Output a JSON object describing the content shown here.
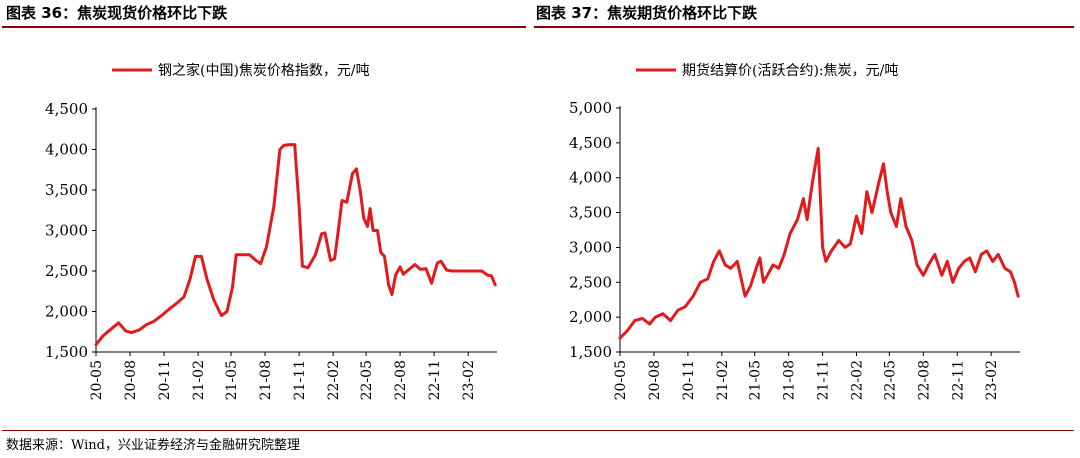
{
  "left": {
    "fig_title": "图表 36：焦炭现货价格环比下跌",
    "chart_data": {
      "type": "line",
      "title": "",
      "xlabel": "",
      "ylabel": "",
      "ylim": [
        1500,
        4500
      ],
      "yticks": [
        "1,500",
        "2,000",
        "2,500",
        "3,000",
        "3,500",
        "4,000",
        "4,500"
      ],
      "xticks": [
        "20-05",
        "20-08",
        "20-11",
        "21-02",
        "21-05",
        "21-08",
        "21-11",
        "22-02",
        "22-05",
        "22-08",
        "22-11",
        "23-02"
      ],
      "legend": "top-center",
      "grid": false,
      "series": [
        {
          "name": "钢之家(中国)焦炭价格指数，元/吨",
          "color": "#e31a1c",
          "x": [
            "2020-05-01",
            "2020-05-20",
            "2020-06-10",
            "2020-07-01",
            "2020-07-20",
            "2020-08-05",
            "2020-08-25",
            "2020-09-15",
            "2020-10-05",
            "2020-10-25",
            "2020-11-15",
            "2020-12-05",
            "2020-12-25",
            "2021-01-10",
            "2021-01-25",
            "2021-02-10",
            "2021-02-25",
            "2021-03-15",
            "2021-04-05",
            "2021-04-20",
            "2021-05-05",
            "2021-05-15",
            "2021-05-25",
            "2021-06-20",
            "2021-07-05",
            "2021-07-20",
            "2021-08-05",
            "2021-08-25",
            "2021-09-10",
            "2021-09-20",
            "2021-10-05",
            "2021-10-20",
            "2021-11-01",
            "2021-11-10",
            "2021-11-25",
            "2021-12-15",
            "2022-01-01",
            "2022-01-10",
            "2022-01-25",
            "2022-02-05",
            "2022-02-15",
            "2022-02-25",
            "2022-03-10",
            "2022-03-25",
            "2022-04-05",
            "2022-04-15",
            "2022-04-25",
            "2022-05-05",
            "2022-05-12",
            "2022-05-20",
            "2022-06-01",
            "2022-06-10",
            "2022-06-20",
            "2022-07-01",
            "2022-07-10",
            "2022-07-20",
            "2022-08-01",
            "2022-08-10",
            "2022-08-20",
            "2022-09-10",
            "2022-09-25",
            "2022-10-10",
            "2022-10-25",
            "2022-11-10",
            "2022-11-20",
            "2022-12-05",
            "2022-12-20",
            "2023-01-05",
            "2023-01-20",
            "2023-02-05",
            "2023-02-20",
            "2023-03-10",
            "2023-03-25",
            "2023-04-05",
            "2023-04-15"
          ],
          "values": [
            1590,
            1700,
            1780,
            1860,
            1760,
            1740,
            1770,
            1840,
            1880,
            1950,
            2030,
            2100,
            2180,
            2400,
            2680,
            2680,
            2400,
            2150,
            1950,
            2000,
            2300,
            2700,
            2700,
            2700,
            2640,
            2590,
            2800,
            3300,
            4000,
            4050,
            4060,
            4060,
            3300,
            2560,
            2540,
            2700,
            2960,
            2970,
            2630,
            2650,
            3000,
            3370,
            3350,
            3700,
            3760,
            3500,
            3150,
            3050,
            3270,
            3000,
            3000,
            2730,
            2680,
            2330,
            2210,
            2450,
            2550,
            2460,
            2500,
            2580,
            2520,
            2530,
            2350,
            2600,
            2620,
            2510,
            2500,
            2500,
            2500,
            2500,
            2500,
            2500,
            2450,
            2440,
            2330
          ]
        }
      ]
    }
  },
  "right": {
    "fig_title": "图表 37：焦炭期货价格环比下跌",
    "chart_data": {
      "type": "line",
      "title": "",
      "xlabel": "",
      "ylabel": "",
      "ylim": [
        1500,
        5000
      ],
      "yticks": [
        "1,500",
        "2,000",
        "2,500",
        "3,000",
        "3,500",
        "4,000",
        "4,500",
        "5,000"
      ],
      "xticks": [
        "20-05",
        "20-08",
        "20-11",
        "21-02",
        "21-05",
        "21-08",
        "21-11",
        "22-02",
        "22-05",
        "22-08",
        "22-11",
        "23-02"
      ],
      "legend": "top-center",
      "grid": false,
      "series": [
        {
          "name": "期货结算价(活跃合约):焦炭，元/吨",
          "color": "#e31a1c",
          "x": [
            "2020-05-01",
            "2020-05-20",
            "2020-06-10",
            "2020-07-01",
            "2020-07-20",
            "2020-08-05",
            "2020-08-25",
            "2020-09-15",
            "2020-10-05",
            "2020-10-25",
            "2020-11-15",
            "2020-12-05",
            "2020-12-25",
            "2021-01-10",
            "2021-01-25",
            "2021-02-10",
            "2021-02-25",
            "2021-03-15",
            "2021-04-05",
            "2021-04-20",
            "2021-05-05",
            "2021-05-15",
            "2021-05-25",
            "2021-06-20",
            "2021-07-05",
            "2021-07-20",
            "2021-08-05",
            "2021-08-25",
            "2021-09-10",
            "2021-09-20",
            "2021-10-05",
            "2021-10-20",
            "2021-11-01",
            "2021-11-10",
            "2021-11-25",
            "2021-12-15",
            "2022-01-01",
            "2022-01-15",
            "2022-02-01",
            "2022-02-15",
            "2022-03-01",
            "2022-03-15",
            "2022-04-01",
            "2022-04-15",
            "2022-04-25",
            "2022-05-05",
            "2022-05-20",
            "2022-06-01",
            "2022-06-15",
            "2022-07-01",
            "2022-07-15",
            "2022-08-01",
            "2022-08-15",
            "2022-09-01",
            "2022-09-20",
            "2022-10-05",
            "2022-10-20",
            "2022-11-05",
            "2022-11-20",
            "2022-12-05",
            "2022-12-20",
            "2023-01-05",
            "2023-01-20",
            "2023-02-05",
            "2023-02-20",
            "2023-03-10",
            "2023-03-25",
            "2023-04-05",
            "2023-04-15"
          ],
          "values": [
            1700,
            1800,
            1950,
            1980,
            1900,
            2000,
            2050,
            1950,
            2100,
            2150,
            2300,
            2500,
            2550,
            2800,
            2950,
            2750,
            2700,
            2800,
            2300,
            2450,
            2700,
            2850,
            2500,
            2750,
            2700,
            2900,
            3200,
            3400,
            3700,
            3400,
            3950,
            4420,
            3000,
            2800,
            2950,
            3100,
            3000,
            3050,
            3450,
            3200,
            3800,
            3500,
            3900,
            4200,
            3800,
            3500,
            3300,
            3700,
            3300,
            3100,
            2750,
            2600,
            2750,
            2900,
            2600,
            2800,
            2500,
            2700,
            2800,
            2850,
            2650,
            2900,
            2950,
            2800,
            2900,
            2700,
            2650,
            2500,
            2300
          ]
        }
      ]
    }
  },
  "source": "数据来源：Wind，兴业证券经济与金融研究院整理"
}
